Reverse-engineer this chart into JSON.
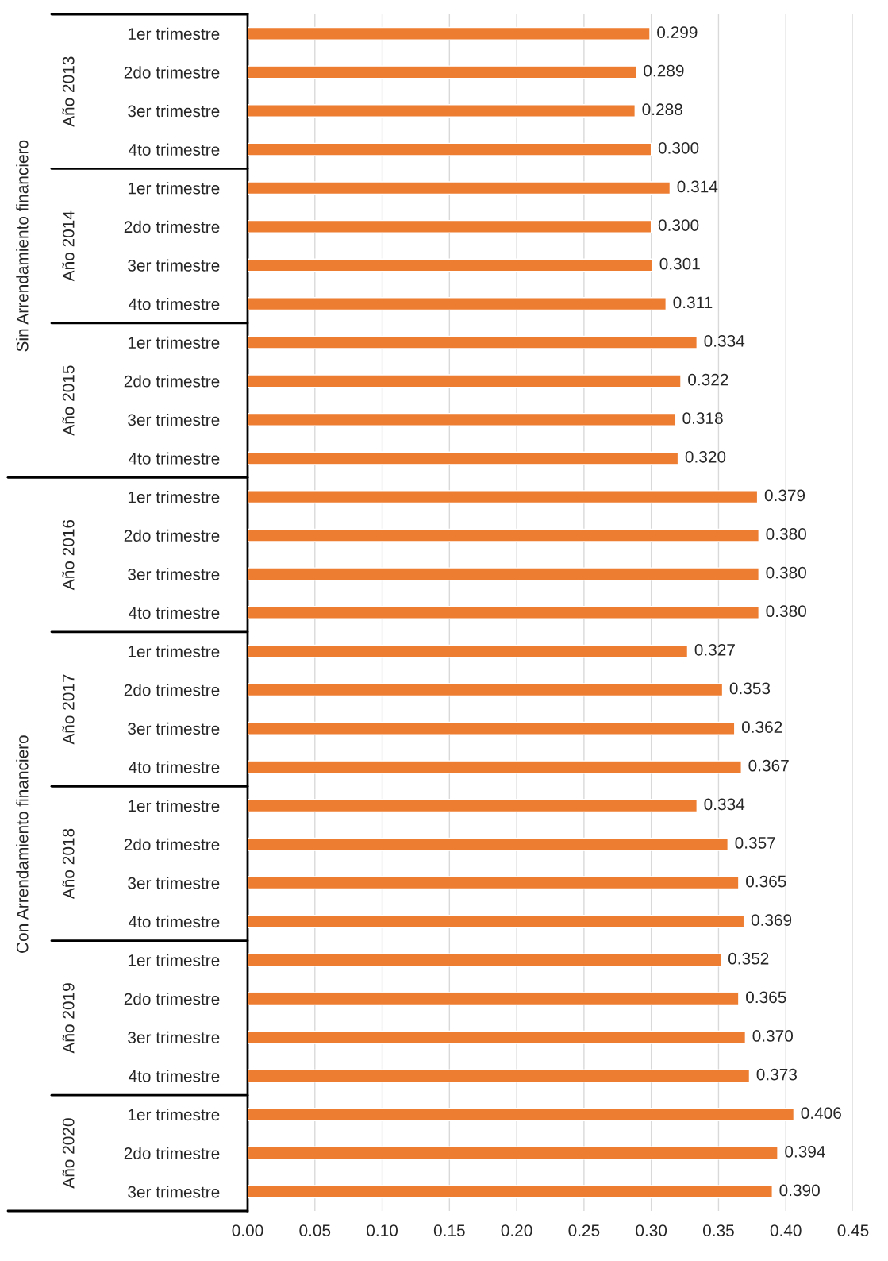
{
  "chart_data": {
    "type": "bar",
    "orientation": "horizontal",
    "categories": [
      "1er trimestre",
      "2do trimestre",
      "3er trimestre",
      "4to trimestre",
      "1er trimestre",
      "2do trimestre",
      "3er trimestre",
      "4to trimestre",
      "1er trimestre",
      "2do trimestre",
      "3er trimestre",
      "4to trimestre",
      "1er trimestre",
      "2do trimestre",
      "3er trimestre",
      "4to trimestre",
      "1er trimestre",
      "2do trimestre",
      "3er trimestre",
      "4to trimestre",
      "1er trimestre",
      "2do trimestre",
      "3er trimestre",
      "4to trimestre",
      "1er trimestre",
      "2do trimestre",
      "3er trimestre",
      "4to trimestre",
      "1er trimestre",
      "2do trimestre",
      "3er trimestre"
    ],
    "values": [
      0.299,
      0.289,
      0.288,
      0.3,
      0.314,
      0.3,
      0.301,
      0.311,
      0.334,
      0.322,
      0.318,
      0.32,
      0.379,
      0.38,
      0.38,
      0.38,
      0.327,
      0.353,
      0.362,
      0.367,
      0.334,
      0.357,
      0.365,
      0.369,
      0.352,
      0.365,
      0.37,
      0.373,
      0.406,
      0.394,
      0.39
    ],
    "value_labels": [
      "0.299",
      "0.289",
      "0.288",
      "0.300",
      "0.314",
      "0.300",
      "0.301",
      "0.311",
      "0.334",
      "0.322",
      "0.318",
      "0.320",
      "0.379",
      "0.380",
      "0.380",
      "0.380",
      "0.327",
      "0.353",
      "0.362",
      "0.367",
      "0.334",
      "0.357",
      "0.365",
      "0.369",
      "0.352",
      "0.365",
      "0.370",
      "0.373",
      "0.406",
      "0.394",
      "0.390"
    ],
    "color": "#ed7d31",
    "xlim": [
      0,
      0.45
    ],
    "xticks": [
      {
        "value": 0,
        "label": "0.00"
      },
      {
        "value": 0.05,
        "label": "0.05"
      },
      {
        "value": 0.1,
        "label": "0.10"
      },
      {
        "value": 0.15,
        "label": "0.15"
      },
      {
        "value": 0.2,
        "label": "0.20"
      },
      {
        "value": 0.25,
        "label": "0.25"
      },
      {
        "value": 0.3,
        "label": "0.30"
      },
      {
        "value": 0.35,
        "label": "0.35"
      },
      {
        "value": 0.4,
        "label": "0.40"
      },
      {
        "value": 0.45,
        "label": "0.45"
      }
    ],
    "grid": "x",
    "legend": false,
    "annotations": [
      "Año 2013",
      "Año 2014",
      "Año 2015",
      "Año 2016",
      "Año 2017",
      "Año 2018",
      "Año 2019",
      "Año 2020",
      "Sin Arrendamiento financiero",
      "Con Arrendamiento financiero"
    ]
  }
}
